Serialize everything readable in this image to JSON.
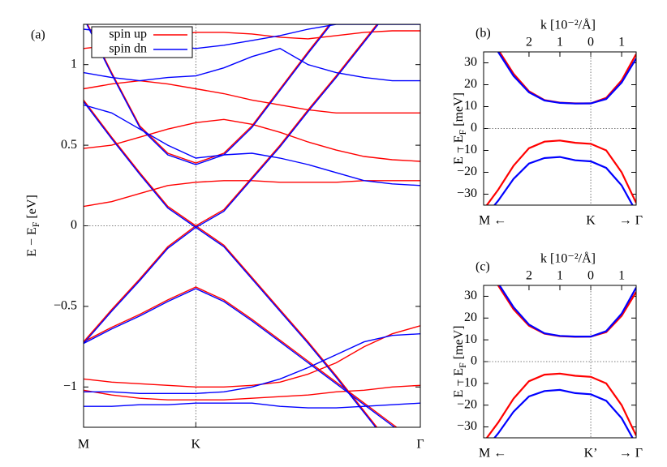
{
  "chart_data": [
    {
      "type": "line",
      "panel_label": "(a)",
      "ylabel": "E − E",
      "ylabel_sub": "F",
      "ylabel_unit": " [eV]",
      "x": [
        0,
        0.25,
        0.5,
        0.75,
        1,
        1.25,
        1.5,
        1.75,
        2,
        2.25,
        2.5,
        2.75,
        3
      ],
      "xlim": [
        0,
        3
      ],
      "xticks": [
        {
          "value": 0,
          "label": "M"
        },
        {
          "value": 1,
          "label": "K"
        },
        {
          "value": 3,
          "label": "Γ"
        }
      ],
      "ylim": [
        -1.25,
        1.25
      ],
      "yticks": [
        {
          "value": -1,
          "label": "−1"
        },
        {
          "value": -0.5,
          "label": "−0.5"
        },
        0,
        0.5,
        1
      ],
      "legend": "top-left",
      "series": [
        {
          "name": "spin up",
          "color": "#ff0000",
          "bands": [
            [
              0.78,
              0.55,
              0.33,
              0.12,
              0.0,
              0.1,
              0.3,
              0.5,
              0.72,
              0.93,
              1.15,
              1.37,
              1.6
            ],
            [
              -0.72,
              -0.52,
              -0.33,
              -0.13,
              0.0,
              -0.12,
              -0.32,
              -0.52,
              -0.72,
              -0.93,
              -1.15,
              -1.37,
              -1.6
            ],
            [
              1.3,
              0.95,
              0.62,
              0.45,
              0.39,
              0.45,
              0.62,
              0.85,
              1.08,
              1.3,
              1.5,
              1.7,
              1.9
            ],
            [
              -0.72,
              -0.63,
              -0.55,
              -0.46,
              -0.38,
              -0.46,
              -0.58,
              -0.71,
              -0.84,
              -0.97,
              -1.1,
              -1.23,
              -1.36
            ],
            [
              0.12,
              0.15,
              0.2,
              0.25,
              0.27,
              0.28,
              0.28,
              0.27,
              0.27,
              0.27,
              0.28,
              0.28,
              0.28
            ],
            [
              0.85,
              0.88,
              0.9,
              0.88,
              0.85,
              0.82,
              0.78,
              0.75,
              0.72,
              0.7,
              0.7,
              0.7,
              0.7
            ],
            [
              0.48,
              0.5,
              0.55,
              0.6,
              0.64,
              0.66,
              0.63,
              0.58,
              0.52,
              0.47,
              0.43,
              0.41,
              0.4
            ],
            [
              -0.95,
              -0.97,
              -0.98,
              -0.99,
              -1.0,
              -1.0,
              -0.99,
              -0.97,
              -0.92,
              -0.85,
              -0.75,
              -0.67,
              -0.62
            ],
            [
              -1.02,
              -1.05,
              -1.07,
              -1.08,
              -1.08,
              -1.08,
              -1.07,
              -1.06,
              -1.05,
              -1.03,
              -1.02,
              -1.0,
              -0.99
            ],
            [
              1.1,
              1.12,
              1.15,
              1.18,
              1.2,
              1.2,
              1.19,
              1.17,
              1.16,
              1.18,
              1.2,
              1.21,
              1.21
            ]
          ]
        },
        {
          "name": "spin dn",
          "color": "#0000ff",
          "bands": [
            [
              0.77,
              0.54,
              0.32,
              0.11,
              -0.01,
              0.09,
              0.29,
              0.49,
              0.71,
              0.92,
              1.14,
              1.36,
              1.59
            ],
            [
              -0.73,
              -0.53,
              -0.34,
              -0.14,
              -0.01,
              -0.13,
              -0.33,
              -0.53,
              -0.73,
              -0.94,
              -1.16,
              -1.38,
              -1.61
            ],
            [
              1.29,
              0.94,
              0.61,
              0.44,
              0.38,
              0.44,
              0.61,
              0.84,
              1.07,
              1.29,
              1.49,
              1.69,
              1.89
            ],
            [
              -0.73,
              -0.64,
              -0.56,
              -0.47,
              -0.39,
              -0.47,
              -0.59,
              -0.72,
              -0.85,
              -0.98,
              -1.11,
              -1.24,
              -1.37
            ],
            [
              0.75,
              0.7,
              0.6,
              0.5,
              0.42,
              0.44,
              0.45,
              0.42,
              0.38,
              0.33,
              0.28,
              0.26,
              0.25
            ],
            [
              0.95,
              0.92,
              0.9,
              0.92,
              0.93,
              0.98,
              1.05,
              1.1,
              1.0,
              0.95,
              0.92,
              0.9,
              0.9
            ],
            [
              -1.03,
              -1.03,
              -1.04,
              -1.04,
              -1.04,
              -1.03,
              -1.0,
              -0.95,
              -0.88,
              -0.8,
              -0.72,
              -0.68,
              -0.67
            ],
            [
              -1.12,
              -1.12,
              -1.11,
              -1.11,
              -1.1,
              -1.1,
              -1.1,
              -1.12,
              -1.13,
              -1.13,
              -1.12,
              -1.11,
              -1.1
            ],
            [
              1.22,
              1.2,
              1.15,
              1.12,
              1.1,
              1.12,
              1.15,
              1.18,
              1.22,
              1.25,
              1.25,
              1.25,
              1.25
            ]
          ]
        }
      ]
    },
    {
      "type": "line",
      "panel_label": "(b)",
      "ylabel": "E − E",
      "ylabel_sub": "F",
      "ylabel_unit": " [meV]",
      "xlabel": "k [10⁻²/Å]",
      "bottom_labels": [
        "M ←",
        "K",
        "→ Γ"
      ],
      "x": [
        -3.47,
        -3,
        -2.5,
        -2,
        -1.5,
        -1,
        -0.5,
        0,
        0.5,
        1,
        1.47
      ],
      "xlim": [
        -3.47,
        1.47
      ],
      "xticks": [
        {
          "value": -2,
          "label": "2"
        },
        {
          "value": -1,
          "label": "1"
        },
        0,
        1
      ],
      "ylim": [
        -35,
        35
      ],
      "yticks": [
        {
          "value": -30,
          "label": "−30"
        },
        {
          "value": -20,
          "label": "−20"
        },
        {
          "value": -10,
          "label": "−10"
        },
        0,
        10,
        20,
        30
      ],
      "series": [
        {
          "name": "spin up",
          "color": "#ff0000",
          "bands": [
            [
              46,
              36,
              25,
              17,
              13,
              11.8,
              11.5,
              11.5,
              14,
              22,
              34
            ],
            [
              -37,
              -28,
              -17,
              -9,
              -6,
              -5.5,
              -6.5,
              -7,
              -10,
              -20,
              -34
            ]
          ]
        },
        {
          "name": "spin dn",
          "color": "#0000ff",
          "bands": [
            [
              45,
              35,
              24,
              16.5,
              12.8,
              11.7,
              11.4,
              11.5,
              13.5,
              21,
              32
            ],
            [
              -41,
              -33,
              -23,
              -16,
              -13.5,
              -13,
              -14.5,
              -15,
              -18,
              -26,
              -38
            ]
          ]
        }
      ]
    },
    {
      "type": "line",
      "panel_label": "(c)",
      "ylabel": "E − E",
      "ylabel_sub": "F",
      "ylabel_unit": " [meV]",
      "xlabel": "k [10⁻²/Å]",
      "bottom_labels": [
        "M ←",
        "K’",
        "→ Γ"
      ],
      "x": [
        -3.47,
        -3,
        -2.5,
        -2,
        -1.5,
        -1,
        -0.5,
        0,
        0.5,
        1,
        1.47
      ],
      "xlim": [
        -3.47,
        1.47
      ],
      "xticks": [
        {
          "value": -2,
          "label": "2"
        },
        {
          "value": -1,
          "label": "1"
        },
        0,
        1
      ],
      "ylim": [
        -35,
        35
      ],
      "yticks": [
        {
          "value": -30,
          "label": "−30"
        },
        {
          "value": -20,
          "label": "−20"
        },
        {
          "value": -10,
          "label": "−10"
        },
        0,
        10,
        20,
        30
      ],
      "series": [
        {
          "name": "spin up",
          "color": "#ff0000",
          "bands": [
            [
              45,
              35,
              24,
              16.5,
              12.8,
              11.7,
              11.4,
              11.5,
              13.5,
              21,
              32
            ],
            [
              -37,
              -28,
              -17,
              -9,
              -6,
              -5.5,
              -6.5,
              -7,
              -10,
              -20,
              -34
            ]
          ]
        },
        {
          "name": "spin dn",
          "color": "#0000ff",
          "bands": [
            [
              46,
              36,
              25,
              17,
              13,
              11.8,
              11.5,
              11.5,
              14,
              22,
              34
            ],
            [
              -41,
              -33,
              -23,
              -16,
              -13.5,
              -13,
              -14.5,
              -15,
              -18,
              -26,
              -38
            ]
          ]
        }
      ]
    }
  ]
}
